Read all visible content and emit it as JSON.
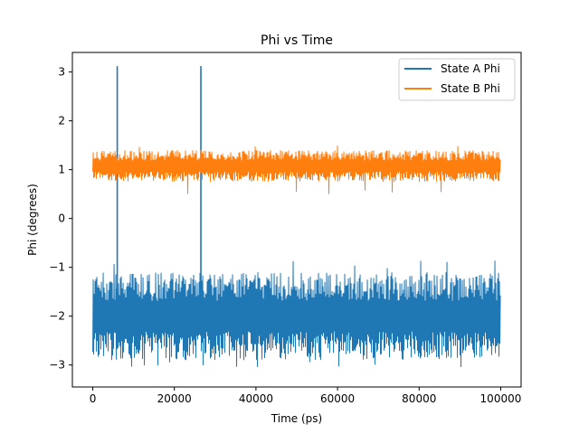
{
  "chart_data": {
    "type": "line",
    "title": "Phi vs Time",
    "xlabel": "Time (ps)",
    "ylabel": "Phi (degrees)",
    "xlim": [
      -5000,
      105000
    ],
    "ylim": [
      -3.45,
      3.4
    ],
    "xticks": [
      0,
      20000,
      40000,
      60000,
      80000,
      100000
    ],
    "xtick_labels": [
      "0",
      "20000",
      "40000",
      "60000",
      "80000",
      "100000"
    ],
    "yticks": [
      -3,
      -2,
      -1,
      0,
      1,
      2,
      3
    ],
    "ytick_labels": [
      "−3",
      "−2",
      "−1",
      "0",
      "1",
      "2",
      "3"
    ],
    "grid": false,
    "legend_position": "top-right",
    "series": [
      {
        "name": "State A Phi",
        "color": "#1f77b4",
        "x_range": [
          0,
          100000
        ],
        "band_lower": -2.9,
        "band_upper": -1.1,
        "min": -3.1,
        "max": -0.85,
        "spikes": [
          {
            "x": 6000,
            "y": 3.12
          },
          {
            "x": 26500,
            "y": 3.12
          }
        ]
      },
      {
        "name": "State B Phi",
        "color": "#ff7f0e",
        "x_range": [
          0,
          100000
        ],
        "band_lower": 0.75,
        "band_upper": 1.4,
        "min": 0.48,
        "max": 1.52
      }
    ]
  }
}
